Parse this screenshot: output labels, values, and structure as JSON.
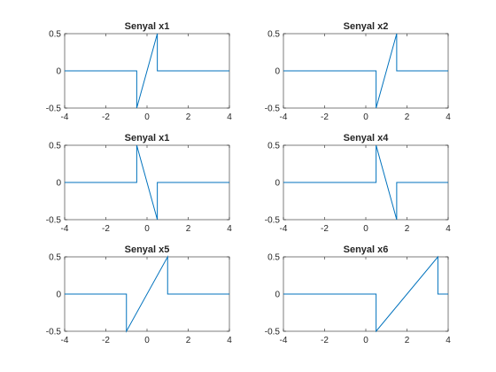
{
  "figure": {
    "background": "#ffffff",
    "line_color": "#0072BD",
    "axis_color": "#262626"
  },
  "chart_data": [
    {
      "type": "line",
      "title": "Senyal x1",
      "xlim": [
        -4,
        4
      ],
      "ylim": [
        -0.5,
        0.5
      ],
      "xticks": [
        -4,
        -2,
        0,
        2,
        4
      ],
      "xtick_labels": [
        "-4",
        "-2",
        "0",
        "2",
        "4"
      ],
      "yticks": [
        -0.5,
        0,
        0.5
      ],
      "ytick_labels": [
        "-0.5",
        "0",
        "0.5"
      ],
      "grid": false,
      "series": [
        {
          "x": [
            -4,
            -0.5,
            -0.5,
            0.5,
            0.5,
            4
          ],
          "y": [
            0,
            0,
            -0.5,
            0.5,
            0,
            0
          ]
        }
      ]
    },
    {
      "type": "line",
      "title": "Senyal x2",
      "xlim": [
        -4,
        4
      ],
      "ylim": [
        -0.5,
        0.5
      ],
      "xticks": [
        -4,
        -2,
        0,
        2,
        4
      ],
      "xtick_labels": [
        "-4",
        "-2",
        "0",
        "2",
        "4"
      ],
      "yticks": [
        -0.5,
        0,
        0.5
      ],
      "ytick_labels": [
        "-0.5",
        "0",
        "0.5"
      ],
      "grid": false,
      "series": [
        {
          "x": [
            -4,
            0.5,
            0.5,
            1.5,
            1.5,
            4
          ],
          "y": [
            0,
            0,
            -0.5,
            0.5,
            0,
            0
          ]
        }
      ]
    },
    {
      "type": "line",
      "title": "Senyal x1",
      "xlim": [
        -4,
        4
      ],
      "ylim": [
        -0.5,
        0.5
      ],
      "xticks": [
        -4,
        -2,
        0,
        2,
        4
      ],
      "xtick_labels": [
        "-4",
        "-2",
        "0",
        "2",
        "4"
      ],
      "yticks": [
        -0.5,
        0,
        0.5
      ],
      "ytick_labels": [
        "-0.5",
        "0",
        "0.5"
      ],
      "grid": false,
      "series": [
        {
          "x": [
            -4,
            -0.5,
            -0.5,
            0.5,
            0.5,
            4
          ],
          "y": [
            0,
            0,
            0.5,
            -0.5,
            0,
            0
          ]
        }
      ]
    },
    {
      "type": "line",
      "title": "Senyal x4",
      "xlim": [
        -4,
        4
      ],
      "ylim": [
        -0.5,
        0.5
      ],
      "xticks": [
        -4,
        -2,
        0,
        2,
        4
      ],
      "xtick_labels": [
        "-4",
        "-2",
        "0",
        "2",
        "4"
      ],
      "yticks": [
        -0.5,
        0,
        0.5
      ],
      "ytick_labels": [
        "-0.5",
        "0",
        "0.5"
      ],
      "grid": false,
      "series": [
        {
          "x": [
            -4,
            0.5,
            0.5,
            1.5,
            1.5,
            4
          ],
          "y": [
            0,
            0,
            0.5,
            -0.5,
            0,
            0
          ]
        }
      ]
    },
    {
      "type": "line",
      "title": "Senyal x5",
      "xlim": [
        -4,
        4
      ],
      "ylim": [
        -0.5,
        0.5
      ],
      "xticks": [
        -4,
        -2,
        0,
        2,
        4
      ],
      "xtick_labels": [
        "-4",
        "-2",
        "0",
        "2",
        "4"
      ],
      "yticks": [
        -0.5,
        0,
        0.5
      ],
      "ytick_labels": [
        "-0.5",
        "0",
        "0.5"
      ],
      "grid": false,
      "series": [
        {
          "x": [
            -4,
            -1,
            -1,
            1,
            1,
            4
          ],
          "y": [
            0,
            0,
            -0.5,
            0.5,
            0,
            0
          ]
        }
      ]
    },
    {
      "type": "line",
      "title": "Senyal x6",
      "xlim": [
        -4,
        4
      ],
      "ylim": [
        -0.5,
        0.5
      ],
      "xticks": [
        -4,
        -2,
        0,
        2,
        4
      ],
      "xtick_labels": [
        "-4",
        "-2",
        "0",
        "2",
        "4"
      ],
      "yticks": [
        -0.5,
        0,
        0.5
      ],
      "ytick_labels": [
        "-0.5",
        "0",
        "0.5"
      ],
      "grid": false,
      "series": [
        {
          "x": [
            -4,
            0.5,
            0.5,
            3.5,
            3.5,
            4
          ],
          "y": [
            0,
            0,
            -0.5,
            0.5,
            0,
            0
          ]
        }
      ]
    }
  ]
}
